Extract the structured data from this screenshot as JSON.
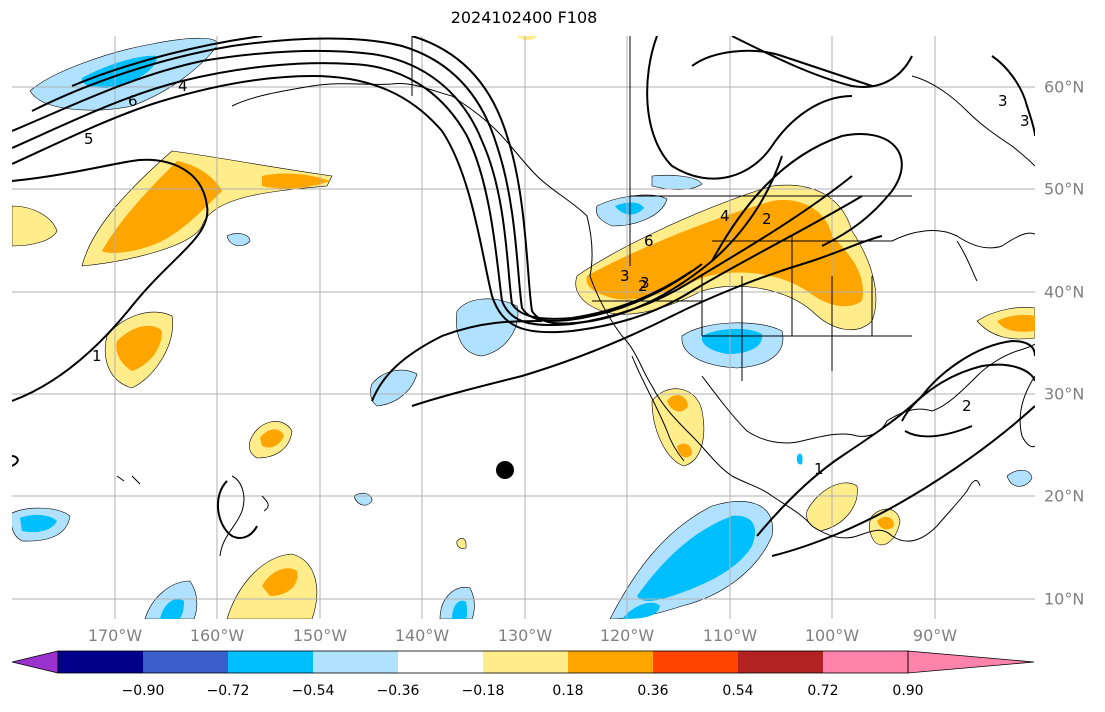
{
  "title": "2024102400 F108",
  "map": {
    "longitude_labels": [
      "170°W",
      "160°W",
      "150°W",
      "140°W",
      "130°W",
      "120°W",
      "110°W",
      "100°W",
      "90°W"
    ],
    "latitude_labels": [
      "60°N",
      "50°N",
      "40°N",
      "30°N",
      "20°N",
      "10°N"
    ],
    "contour_labels": [
      "6",
      "5",
      "4",
      "6",
      "4",
      "2",
      "3",
      "2",
      "3",
      "3",
      "3",
      "1",
      "2",
      "1"
    ],
    "marker": "storm-position-dot"
  },
  "colorbar": {
    "ticks": [
      "−0.90",
      "−0.72",
      "−0.54",
      "−0.36",
      "−0.18",
      "0.18",
      "0.36",
      "0.54",
      "0.72",
      "0.90"
    ],
    "colors": [
      "#9a32cd",
      "#00008b",
      "#3a5fcd",
      "#00bfff",
      "#b0e2ff",
      "#ffffff",
      "#ffec8b",
      "#ffa500",
      "#ff4500",
      "#b22222",
      "#ff83aa"
    ]
  }
}
